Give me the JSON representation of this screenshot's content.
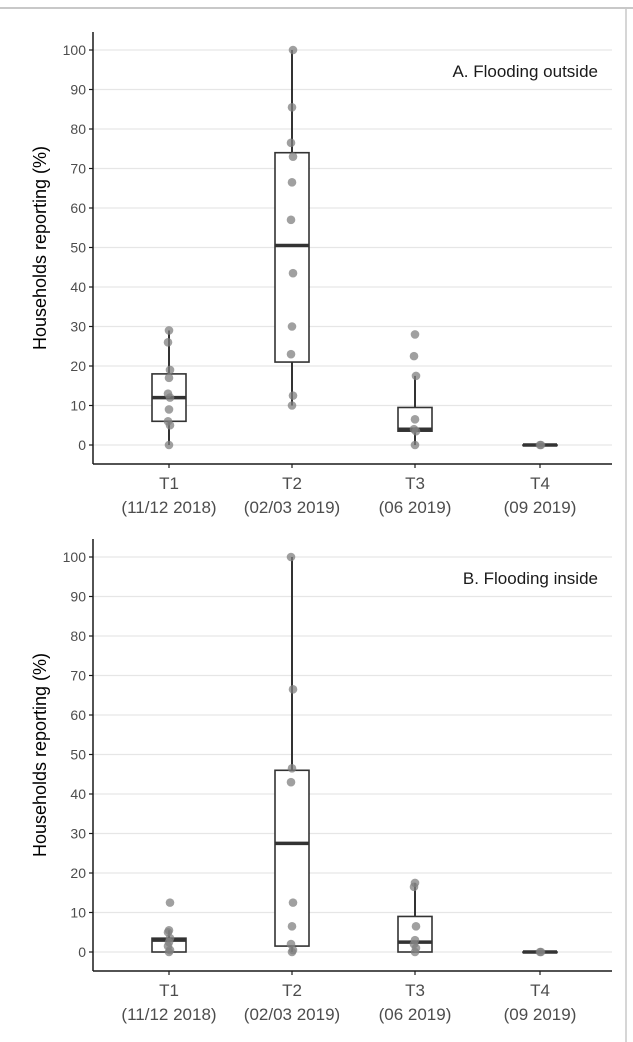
{
  "chart_data": [
    {
      "type": "box",
      "title": "A. Flooding outside",
      "xlabel": "",
      "ylabel": "Households reporting (%)",
      "ylim": [
        0,
        100
      ],
      "yticks": [
        0,
        10,
        20,
        30,
        40,
        50,
        60,
        70,
        80,
        90,
        100
      ],
      "grid": true,
      "categories": [
        {
          "code": "T1",
          "date": "(11/12 2018)"
        },
        {
          "code": "T2",
          "date": "(02/03 2019)"
        },
        {
          "code": "T3",
          "date": "(06 2019)"
        },
        {
          "code": "T4",
          "date": "(09 2019)"
        }
      ],
      "boxes": [
        {
          "min": 0,
          "q1": 6,
          "median": 12,
          "q3": 18,
          "max": 29
        },
        {
          "min": 10,
          "q1": 21,
          "median": 50.5,
          "q3": 74,
          "max": 100
        },
        {
          "min": 0,
          "q1": 3.5,
          "median": 4,
          "q3": 9.5,
          "max": 17.5
        },
        {
          "min": 0,
          "q1": 0,
          "median": 0,
          "q3": 0,
          "max": 0
        }
      ],
      "points": [
        [
          0,
          5,
          6,
          9,
          12,
          13,
          17,
          19,
          26,
          29
        ],
        [
          10,
          12.5,
          23,
          30,
          43.5,
          57,
          66.5,
          73,
          76.5,
          85.5,
          100
        ],
        [
          0,
          3.5,
          4,
          6.5,
          17.5,
          22.5,
          28
        ],
        [
          0,
          0
        ]
      ]
    },
    {
      "type": "box",
      "title": "B. Flooding inside",
      "xlabel": "",
      "ylabel": "Households reporting (%)",
      "ylim": [
        0,
        100
      ],
      "yticks": [
        0,
        10,
        20,
        30,
        40,
        50,
        60,
        70,
        80,
        90,
        100
      ],
      "grid": true,
      "categories": [
        {
          "code": "T1",
          "date": "(11/12 2018)"
        },
        {
          "code": "T2",
          "date": "(02/03 2019)"
        },
        {
          "code": "T3",
          "date": "(06 2019)"
        },
        {
          "code": "T4",
          "date": "(09 2019)"
        }
      ],
      "boxes": [
        {
          "min": 0,
          "q1": 0,
          "median": 3,
          "q3": 3.5,
          "max": 5.5
        },
        {
          "min": 0,
          "q1": 1.5,
          "median": 27.5,
          "q3": 46,
          "max": 100
        },
        {
          "min": 0,
          "q1": 0,
          "median": 2.5,
          "q3": 9,
          "max": 17.5
        },
        {
          "min": 0,
          "q1": 0,
          "median": 0,
          "q3": 0,
          "max": 0
        }
      ],
      "points": [
        [
          0,
          0.5,
          1.5,
          2.5,
          3.5,
          5,
          5.5,
          12.5
        ],
        [
          0,
          0.5,
          2,
          6.5,
          12.5,
          43,
          46.5,
          66.5,
          100
        ],
        [
          0,
          1,
          2,
          3,
          6.5,
          16.5,
          17.5
        ],
        [
          0,
          0
        ]
      ]
    }
  ],
  "colors": {
    "grid": "#e6e6e6",
    "axis": "#1a1a1a",
    "box": "#333333",
    "point": "#808080"
  }
}
